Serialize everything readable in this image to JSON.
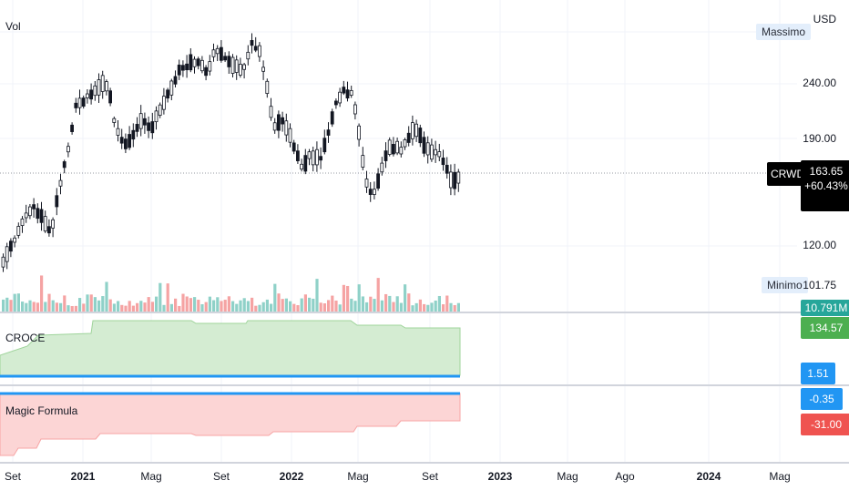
{
  "main_pane": {
    "title": "Vol",
    "currency": "USD",
    "price_ticks": [
      "240.00",
      "190.00",
      "120.00"
    ],
    "max_label": "Massimo",
    "max_value": "",
    "min_label": "Minimo",
    "min_value": "101.75",
    "symbol": "CRWD",
    "last_price": "163.65",
    "change": "+60.43%",
    "volume_tag": "10.791M"
  },
  "croce_pane": {
    "title": "CROCE",
    "value_tag": "134.57",
    "line_tag": "1.51"
  },
  "magic_pane": {
    "title": "Magic Formula",
    "line_tag": "-0.35",
    "value_tag": "-31.00"
  },
  "time_axis": {
    "labels": [
      "Set",
      "2021",
      "Mag",
      "Set",
      "2022",
      "Mag",
      "Set",
      "2023",
      "Mag",
      "Ago",
      "2024",
      "Mag"
    ],
    "bold": [
      false,
      true,
      false,
      false,
      true,
      false,
      false,
      true,
      false,
      false,
      true,
      false
    ]
  },
  "colors": {
    "up": "#26a69a",
    "down": "#ef5350",
    "line": "#2196f3",
    "croce_fill": "#d4ecd2",
    "magic_fill": "#fcd5d5",
    "tag_green": "#4caf50",
    "tag_blue": "#2196f3",
    "tag_red": "#ef5350",
    "tag_teal": "#26a69a"
  }
}
